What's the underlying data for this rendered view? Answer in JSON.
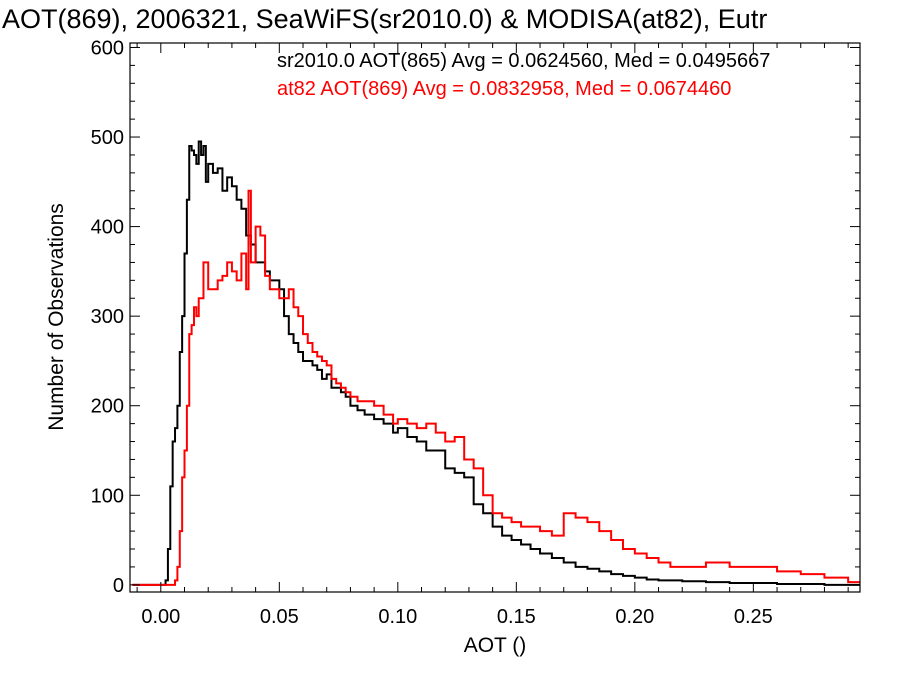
{
  "chart_data": {
    "type": "line",
    "title": "AOT(869), 2006321, SeaWiFS(sr2010.0) & MODISA(at82), Eutr",
    "xlabel": "AOT ()",
    "ylabel": "Number of Observations",
    "xlim": [
      -0.013,
      0.295
    ],
    "ylim": [
      -8,
      605
    ],
    "xticks": [
      0.0,
      0.05,
      0.1,
      0.15,
      0.2,
      0.25
    ],
    "xtick_labels": [
      "0.00",
      "0.05",
      "0.10",
      "0.15",
      "0.20",
      "0.25"
    ],
    "yticks": [
      0,
      100,
      200,
      300,
      400,
      500,
      600
    ],
    "ytick_labels": [
      "0",
      "100",
      "200",
      "300",
      "400",
      "500",
      "600"
    ],
    "grid": false,
    "legend_placement": "top-right",
    "series": [
      {
        "legend": "sr2010.0 AOT(865) Avg = 0.0624560, Med = 0.0495667",
        "color": "#000000",
        "x": [
          -0.012,
          -0.005,
          0.0,
          0.002,
          0.003,
          0.004,
          0.005,
          0.006,
          0.007,
          0.008,
          0.009,
          0.01,
          0.011,
          0.012,
          0.013,
          0.014,
          0.015,
          0.016,
          0.017,
          0.018,
          0.019,
          0.02,
          0.022,
          0.024,
          0.026,
          0.028,
          0.03,
          0.032,
          0.034,
          0.036,
          0.038,
          0.04,
          0.042,
          0.044,
          0.046,
          0.048,
          0.05,
          0.052,
          0.054,
          0.056,
          0.058,
          0.06,
          0.062,
          0.064,
          0.066,
          0.068,
          0.07,
          0.072,
          0.074,
          0.076,
          0.078,
          0.08,
          0.083,
          0.086,
          0.09,
          0.094,
          0.098,
          0.1,
          0.104,
          0.108,
          0.112,
          0.116,
          0.12,
          0.124,
          0.128,
          0.132,
          0.136,
          0.14,
          0.144,
          0.148,
          0.152,
          0.156,
          0.16,
          0.165,
          0.17,
          0.175,
          0.18,
          0.185,
          0.19,
          0.195,
          0.2,
          0.205,
          0.21,
          0.22,
          0.23,
          0.24,
          0.25,
          0.26,
          0.27,
          0.28,
          0.29
        ],
        "values": [
          0,
          0,
          0,
          5,
          40,
          110,
          160,
          175,
          200,
          260,
          300,
          370,
          430,
          490,
          485,
          480,
          470,
          495,
          480,
          490,
          450,
          470,
          460,
          465,
          440,
          455,
          445,
          430,
          420,
          390,
          380,
          360,
          360,
          350,
          340,
          340,
          330,
          300,
          280,
          270,
          260,
          250,
          250,
          245,
          240,
          230,
          235,
          220,
          220,
          215,
          210,
          200,
          195,
          190,
          185,
          180,
          170,
          175,
          165,
          160,
          150,
          150,
          130,
          125,
          120,
          90,
          80,
          65,
          55,
          50,
          45,
          40,
          35,
          30,
          25,
          20,
          18,
          15,
          12,
          10,
          8,
          6,
          5,
          4,
          3,
          2,
          2,
          1,
          1,
          0,
          0
        ]
      },
      {
        "legend": "at82 AOT(869) Avg = 0.0832958, Med = 0.0674460",
        "color": "#ff0000",
        "x": [
          -0.012,
          0.0,
          0.005,
          0.006,
          0.007,
          0.008,
          0.009,
          0.01,
          0.011,
          0.012,
          0.013,
          0.014,
          0.015,
          0.016,
          0.018,
          0.02,
          0.022,
          0.024,
          0.026,
          0.028,
          0.03,
          0.032,
          0.034,
          0.036,
          0.037,
          0.038,
          0.04,
          0.042,
          0.044,
          0.046,
          0.048,
          0.05,
          0.052,
          0.054,
          0.056,
          0.058,
          0.06,
          0.062,
          0.064,
          0.066,
          0.068,
          0.07,
          0.072,
          0.074,
          0.076,
          0.078,
          0.08,
          0.083,
          0.086,
          0.09,
          0.094,
          0.098,
          0.1,
          0.104,
          0.108,
          0.112,
          0.116,
          0.12,
          0.124,
          0.128,
          0.132,
          0.136,
          0.14,
          0.144,
          0.148,
          0.152,
          0.156,
          0.16,
          0.165,
          0.17,
          0.175,
          0.18,
          0.185,
          0.19,
          0.195,
          0.2,
          0.205,
          0.21,
          0.215,
          0.22,
          0.23,
          0.24,
          0.25,
          0.26,
          0.27,
          0.28,
          0.29
        ],
        "values": [
          0,
          0,
          0,
          5,
          20,
          60,
          120,
          150,
          200,
          280,
          290,
          310,
          300,
          320,
          360,
          330,
          330,
          340,
          345,
          360,
          350,
          340,
          370,
          330,
          440,
          360,
          400,
          390,
          345,
          330,
          330,
          320,
          320,
          330,
          310,
          300,
          280,
          270,
          260,
          255,
          250,
          245,
          230,
          225,
          220,
          215,
          210,
          205,
          205,
          200,
          190,
          180,
          185,
          180,
          175,
          180,
          170,
          160,
          165,
          140,
          130,
          100,
          80,
          75,
          70,
          65,
          65,
          60,
          55,
          80,
          75,
          70,
          60,
          50,
          40,
          35,
          30,
          25,
          20,
          20,
          25,
          20,
          20,
          15,
          12,
          8,
          3
        ]
      }
    ]
  }
}
